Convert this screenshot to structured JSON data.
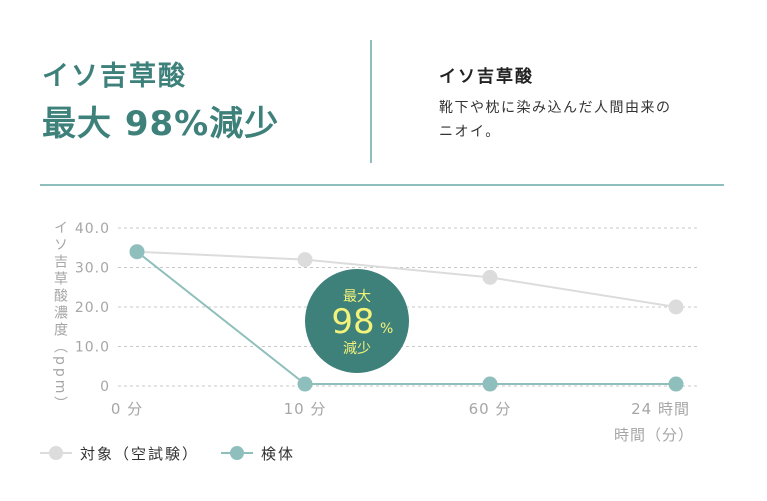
{
  "header": {
    "headline_line1": "イソ吉草酸",
    "headline_line2": "最大 98%減少",
    "sub_title": "イソ吉草酸",
    "description": "靴下や枕に染み込んだ人間由来のニオイ。"
  },
  "colors": {
    "accent": "#3e807a",
    "control": "#dcdcdc",
    "sample": "#8fbfbc",
    "badge_text": "#f3f27a"
  },
  "chart_data": {
    "type": "line",
    "x": [
      "0 分",
      "10 分",
      "60 分",
      "24 時間"
    ],
    "ylabel": "イソ吉草酸濃度（ppm）",
    "xlabel": "時間（分）",
    "yticks": [
      "40.0",
      "30.0",
      "20.0",
      "10.0",
      "0"
    ],
    "ylim": [
      0,
      40
    ],
    "grid": true,
    "series": [
      {
        "name": "対象（空試験）",
        "values": [
          34,
          32,
          27.5,
          20
        ],
        "color": "#dcdcdc"
      },
      {
        "name": "検体",
        "values": [
          34,
          0.5,
          0.5,
          0.5
        ],
        "color": "#8fbfbc"
      }
    ],
    "annotation": {
      "line1": "最大",
      "big": "98",
      "unit": "%",
      "line3": "減少"
    }
  },
  "legend": [
    {
      "label": "対象（空試験）",
      "color": "#dcdcdc"
    },
    {
      "label": "検体",
      "color": "#8fbfbc"
    }
  ]
}
